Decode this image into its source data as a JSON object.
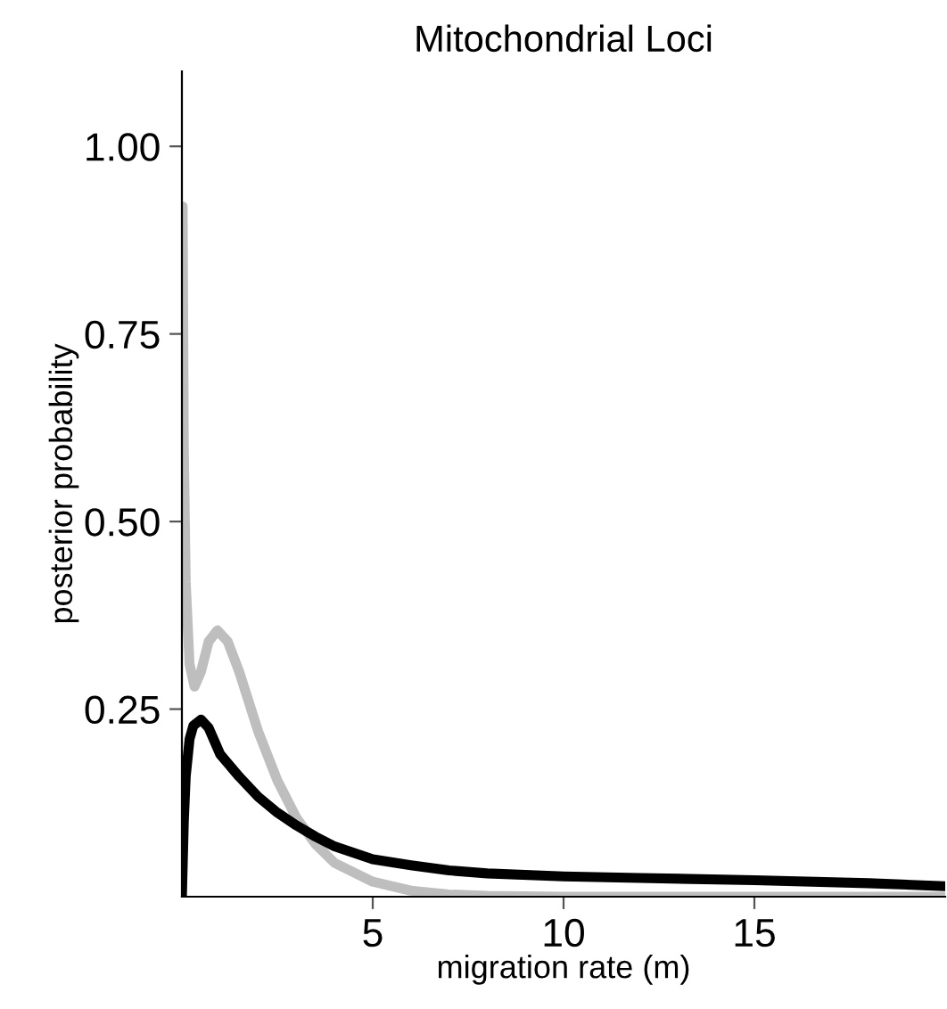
{
  "chart_data": {
    "type": "line",
    "title": "Mitochondrial Loci",
    "xlabel": "migration rate (m)",
    "ylabel": "posterior probability",
    "xlim": [
      0,
      20
    ],
    "ylim": [
      0,
      1.1
    ],
    "xticks": [
      5,
      10,
      15
    ],
    "yticks": [
      {
        "value": 0.25,
        "label": "0.25"
      },
      {
        "value": 0.5,
        "label": "0.50"
      },
      {
        "value": 0.75,
        "label": "0.75"
      },
      {
        "value": 1.0,
        "label": "1.00"
      }
    ],
    "grid": false,
    "series": [
      {
        "color": "#bebebe",
        "x": [
          0.02,
          0.05,
          0.1,
          0.2,
          0.33,
          0.5,
          0.7,
          0.93,
          1.2,
          1.5,
          2,
          2.5,
          3,
          3.5,
          4,
          5,
          6,
          7,
          8,
          10,
          15,
          20
        ],
        "values": [
          0.92,
          0.6,
          0.42,
          0.31,
          0.28,
          0.3,
          0.34,
          0.355,
          0.34,
          0.3,
          0.22,
          0.155,
          0.105,
          0.07,
          0.045,
          0.02,
          0.008,
          0.003,
          0.001,
          0,
          0,
          0
        ]
      },
      {
        "color": "#000000",
        "x": [
          0,
          0.05,
          0.1,
          0.2,
          0.3,
          0.5,
          0.7,
          1,
          1.5,
          2,
          2.5,
          3,
          3.5,
          4,
          5,
          6,
          7,
          8,
          10,
          12,
          15,
          18,
          20
        ],
        "values": [
          0,
          0.1,
          0.16,
          0.21,
          0.228,
          0.236,
          0.225,
          0.19,
          0.16,
          0.133,
          0.112,
          0.095,
          0.08,
          0.067,
          0.05,
          0.042,
          0.035,
          0.031,
          0.027,
          0.025,
          0.022,
          0.018,
          0.014
        ]
      }
    ]
  }
}
